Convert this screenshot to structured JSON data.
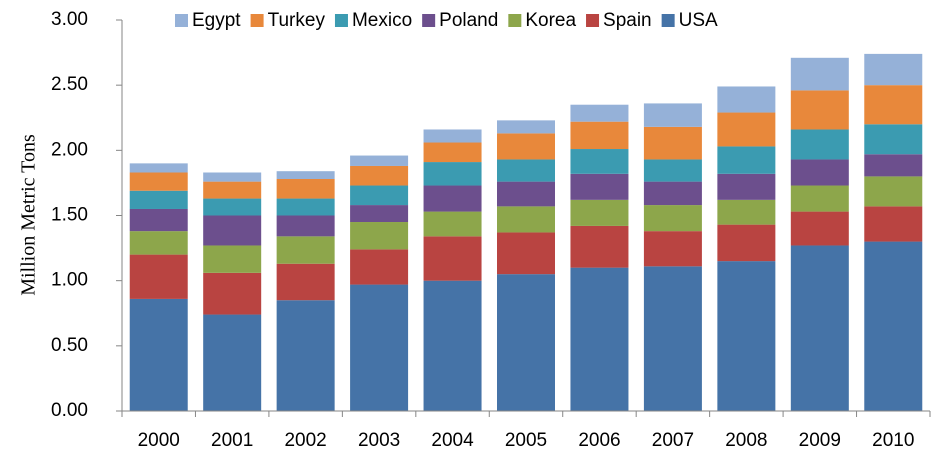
{
  "chart_data": {
    "type": "stacked-bar",
    "y_label": "Million Metric Tons",
    "categories": [
      "2000",
      "2001",
      "2002",
      "2003",
      "2004",
      "2005",
      "2006",
      "2007",
      "2008",
      "2009",
      "2010"
    ],
    "series": [
      {
        "name": "USA",
        "color": "#4573a7",
        "values": [
          0.86,
          0.74,
          0.85,
          0.97,
          1.0,
          1.05,
          1.1,
          1.11,
          1.15,
          1.27,
          1.3
        ]
      },
      {
        "name": "Spain",
        "color": "#b94441",
        "values": [
          0.34,
          0.32,
          0.28,
          0.27,
          0.34,
          0.32,
          0.32,
          0.27,
          0.28,
          0.26,
          0.27
        ]
      },
      {
        "name": "Korea",
        "color": "#8da64b",
        "values": [
          0.18,
          0.21,
          0.21,
          0.21,
          0.19,
          0.2,
          0.2,
          0.2,
          0.19,
          0.2,
          0.23
        ]
      },
      {
        "name": "Poland",
        "color": "#6c4f8d",
        "values": [
          0.17,
          0.23,
          0.16,
          0.13,
          0.2,
          0.19,
          0.2,
          0.18,
          0.2,
          0.2,
          0.17
        ]
      },
      {
        "name": "Mexico",
        "color": "#3b9bb1",
        "values": [
          0.14,
          0.13,
          0.13,
          0.15,
          0.18,
          0.17,
          0.19,
          0.17,
          0.21,
          0.23,
          0.23
        ]
      },
      {
        "name": "Turkey",
        "color": "#e8883b",
        "values": [
          0.14,
          0.13,
          0.15,
          0.15,
          0.15,
          0.2,
          0.21,
          0.25,
          0.26,
          0.3,
          0.3
        ]
      },
      {
        "name": "Egypt",
        "color": "#95b1d8",
        "values": [
          0.07,
          0.07,
          0.06,
          0.08,
          0.1,
          0.1,
          0.13,
          0.18,
          0.2,
          0.25,
          0.24
        ]
      }
    ],
    "ylim": [
      0,
      3
    ],
    "yticks": [
      {
        "value": 0,
        "label": "0.00"
      },
      {
        "value": 0.5,
        "label": "0.50"
      },
      {
        "value": 1,
        "label": "1.00"
      },
      {
        "value": 1.5,
        "label": "1.50"
      },
      {
        "value": 2,
        "label": "2.00"
      },
      {
        "value": 2.5,
        "label": "2.50"
      },
      {
        "value": 3,
        "label": "3.00"
      }
    ],
    "legend": "top",
    "grid": false
  }
}
